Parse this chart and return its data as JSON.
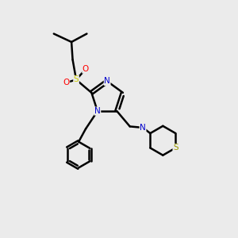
{
  "bg_color": "#ebebeb",
  "colors": {
    "C": "#000000",
    "N": "#0000cc",
    "O": "#ff0000",
    "S_sulfonyl": "#cccc00",
    "S_thio": "#999900"
  },
  "figsize": [
    3.0,
    3.0
  ],
  "dpi": 100
}
